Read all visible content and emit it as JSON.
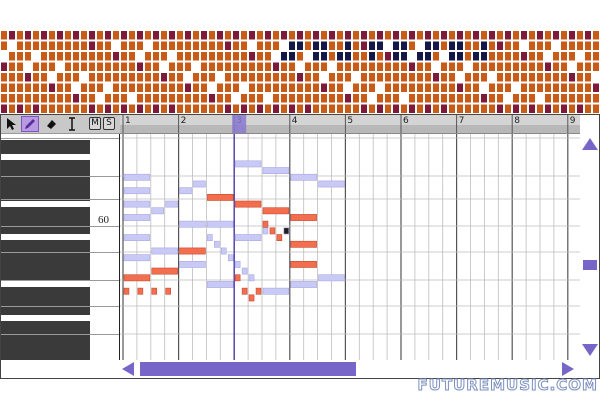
{
  "ruler": {
    "bar_numbers": [
      "1",
      "2",
      "3",
      "4",
      "5",
      "6",
      "7",
      "8",
      "9"
    ],
    "beats_per_bar": 4,
    "playhead_beat": 8
  },
  "keyboard": {
    "c4_label": "60"
  },
  "toolbar": {
    "tools": [
      "pointer-tool",
      "pencil-tool",
      "eraser-tool",
      "text-cursor-tool"
    ],
    "active_tool": "pencil-tool",
    "mute_label": "M",
    "solo_label": "S"
  },
  "colors": {
    "note_active": "#f26e4e",
    "note_inactive": "#c9c9f5",
    "note_selected": "#1e1e1e",
    "overview_orange": "#c75b17",
    "overview_maroon": "#7d1a3a",
    "overview_navy": "#141848",
    "scroll_accent": "#7766c8"
  },
  "watermark": "FUTUREMUSIC.COM",
  "notes": [
    {
      "beat": 0,
      "len": 2,
      "pitch": 68,
      "active": false
    },
    {
      "beat": 0,
      "len": 2,
      "pitch": 66,
      "active": false
    },
    {
      "beat": 0,
      "len": 2,
      "pitch": 64,
      "active": false
    },
    {
      "beat": 0,
      "len": 2,
      "pitch": 62,
      "active": false
    },
    {
      "beat": 0,
      "len": 2,
      "pitch": 59,
      "active": false
    },
    {
      "beat": 0,
      "len": 2,
      "pitch": 56,
      "active": false
    },
    {
      "beat": 0,
      "len": 2,
      "pitch": 53,
      "active": true
    },
    {
      "beat": 0,
      "len": 0.5,
      "pitch": 51,
      "active": true
    },
    {
      "beat": 1,
      "len": 0.5,
      "pitch": 51,
      "active": true
    },
    {
      "beat": 2,
      "len": 2,
      "pitch": 57,
      "active": false
    },
    {
      "beat": 2,
      "len": 2,
      "pitch": 54,
      "active": true
    },
    {
      "beat": 2,
      "len": 1,
      "pitch": 63,
      "active": false
    },
    {
      "beat": 2,
      "len": 0.5,
      "pitch": 51,
      "active": true
    },
    {
      "beat": 3,
      "len": 0.5,
      "pitch": 51,
      "active": true
    },
    {
      "beat": 3,
      "len": 1,
      "pitch": 64,
      "active": false
    },
    {
      "beat": 4,
      "len": 1,
      "pitch": 66,
      "active": false
    },
    {
      "beat": 4,
      "len": 2,
      "pitch": 61,
      "active": false
    },
    {
      "beat": 4,
      "len": 2,
      "pitch": 57,
      "active": true
    },
    {
      "beat": 4,
      "len": 2,
      "pitch": 55,
      "active": false
    },
    {
      "beat": 5,
      "len": 1,
      "pitch": 67,
      "active": false
    },
    {
      "beat": 6,
      "len": 2,
      "pitch": 65,
      "active": true
    },
    {
      "beat": 6,
      "len": 2,
      "pitch": 61,
      "active": false
    },
    {
      "beat": 6,
      "len": 0.5,
      "pitch": 59,
      "active": false
    },
    {
      "beat": 6.5,
      "len": 0.5,
      "pitch": 58,
      "active": false
    },
    {
      "beat": 7,
      "len": 0.5,
      "pitch": 57,
      "active": false
    },
    {
      "beat": 7.5,
      "len": 0.5,
      "pitch": 56,
      "active": false
    },
    {
      "beat": 6,
      "len": 2,
      "pitch": 52,
      "active": false
    },
    {
      "beat": 8,
      "len": 2,
      "pitch": 70,
      "active": false
    },
    {
      "beat": 8,
      "len": 2,
      "pitch": 64,
      "active": true
    },
    {
      "beat": 8,
      "len": 2,
      "pitch": 59,
      "active": false
    },
    {
      "beat": 8,
      "len": 0.5,
      "pitch": 55,
      "active": false
    },
    {
      "beat": 8.5,
      "len": 0.5,
      "pitch": 54,
      "active": false
    },
    {
      "beat": 9,
      "len": 0.5,
      "pitch": 53,
      "active": false
    },
    {
      "beat": 8,
      "len": 0.5,
      "pitch": 53,
      "active": true
    },
    {
      "beat": 8.5,
      "len": 0.5,
      "pitch": 51,
      "active": true
    },
    {
      "beat": 9,
      "len": 0.5,
      "pitch": 50,
      "active": true
    },
    {
      "beat": 9.5,
      "len": 0.5,
      "pitch": 51,
      "active": true
    },
    {
      "beat": 10,
      "len": 2,
      "pitch": 69,
      "active": false
    },
    {
      "beat": 10,
      "len": 2,
      "pitch": 63,
      "active": true
    },
    {
      "beat": 10,
      "len": 0.5,
      "pitch": 61,
      "active": true
    },
    {
      "beat": 10,
      "len": 0.5,
      "pitch": 60,
      "active": false
    },
    {
      "beat": 10.5,
      "len": 0.5,
      "pitch": 60,
      "active": true
    },
    {
      "beat": 11,
      "len": 0.5,
      "pitch": 59,
      "active": true
    },
    {
      "beat": 11.5,
      "len": 0.5,
      "pitch": 60,
      "active": false
    },
    {
      "beat": 11.5,
      "len": 0.5,
      "pitch": 60,
      "active": false,
      "selected": true
    },
    {
      "beat": 10,
      "len": 2,
      "pitch": 51,
      "active": false
    },
    {
      "beat": 12,
      "len": 2,
      "pitch": 68,
      "active": false
    },
    {
      "beat": 12,
      "len": 2,
      "pitch": 62,
      "active": true
    },
    {
      "beat": 12,
      "len": 2,
      "pitch": 58,
      "active": true
    },
    {
      "beat": 12,
      "len": 2,
      "pitch": 55,
      "active": true
    },
    {
      "beat": 12,
      "len": 2,
      "pitch": 52,
      "active": false
    },
    {
      "beat": 14,
      "len": 2,
      "pitch": 67,
      "active": false
    },
    {
      "beat": 14,
      "len": 2,
      "pitch": 53,
      "active": false
    }
  ]
}
